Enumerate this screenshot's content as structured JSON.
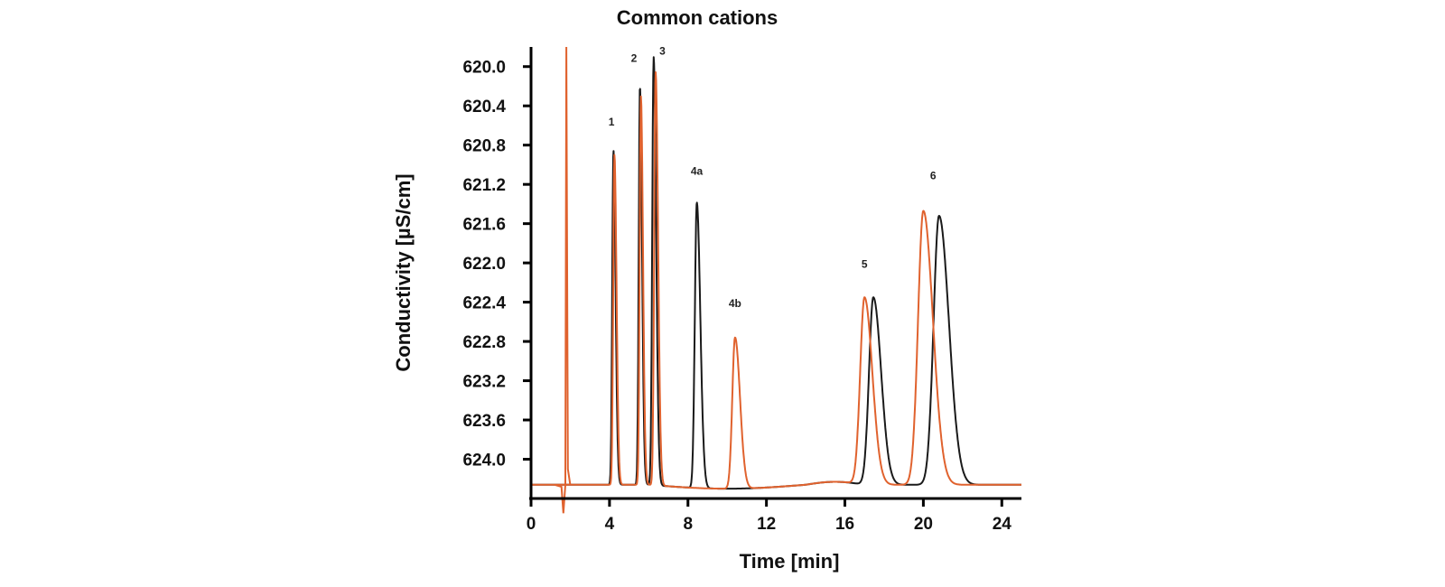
{
  "chart_data": {
    "type": "line",
    "title": "Common cations",
    "xlabel": "Time [min]",
    "ylabel": "Conductivity [µS/cm]",
    "xlim": [
      0,
      25
    ],
    "ylim": [
      619.8,
      624.4
    ],
    "y_inverted": true,
    "xticks": [
      0,
      4,
      8,
      12,
      16,
      20,
      24
    ],
    "xtick_labels": [
      "0",
      "4",
      "8",
      "12",
      "16",
      "20",
      "24"
    ],
    "yticks": [
      620.0,
      620.4,
      620.8,
      621.2,
      621.6,
      622.0,
      622.4,
      622.8,
      623.2,
      623.6,
      624.0
    ],
    "ytick_labels": [
      "620.0",
      "620.4",
      "620.8",
      "621.2",
      "621.6",
      "622.0",
      "622.4",
      "622.8",
      "623.2",
      "623.6",
      "624.0"
    ],
    "grid": false,
    "legend": "none",
    "baseline": 624.26,
    "series": [
      {
        "name": "Black trace",
        "color": "#1a1a1a",
        "peaks": [
          {
            "label": "1",
            "x": 4.2,
            "y": 620.85,
            "w": 0.06
          },
          {
            "label": "2",
            "x": 5.55,
            "y": 620.2,
            "w": 0.06
          },
          {
            "label": "3",
            "x": 6.25,
            "y": 619.9,
            "w": 0.07
          },
          {
            "label": "4a",
            "x": 8.45,
            "y": 621.35,
            "w": 0.1
          },
          {
            "label": "5",
            "x": 17.45,
            "y": 622.35,
            "w": 0.22
          },
          {
            "label": "6",
            "x": 20.8,
            "y": 621.52,
            "w": 0.28
          }
        ]
      },
      {
        "name": "Orange trace",
        "color": "#e0622e",
        "peaks": [
          {
            "label": "1",
            "x": 4.25,
            "y": 620.9,
            "w": 0.06
          },
          {
            "label": "2",
            "x": 5.6,
            "y": 620.3,
            "w": 0.06
          },
          {
            "label": "3",
            "x": 6.35,
            "y": 620.05,
            "w": 0.07
          },
          {
            "label": "4b",
            "x": 10.4,
            "y": 622.72,
            "w": 0.14
          },
          {
            "label": "5",
            "x": 17.0,
            "y": 622.35,
            "w": 0.22
          },
          {
            "label": "6",
            "x": 20.0,
            "y": 621.47,
            "w": 0.27
          }
        ]
      }
    ],
    "annotations": [
      {
        "text": "1",
        "x": 4.1,
        "y": 620.6
      },
      {
        "text": "2",
        "x": 5.25,
        "y": 619.95
      },
      {
        "text": "3",
        "x": 6.7,
        "y": 619.88
      },
      {
        "text": "4a",
        "x": 8.45,
        "y": 621.1
      },
      {
        "text": "4b",
        "x": 10.4,
        "y": 622.45
      },
      {
        "text": "5",
        "x": 17.0,
        "y": 622.05
      },
      {
        "text": "6",
        "x": 20.5,
        "y": 621.15
      }
    ]
  }
}
